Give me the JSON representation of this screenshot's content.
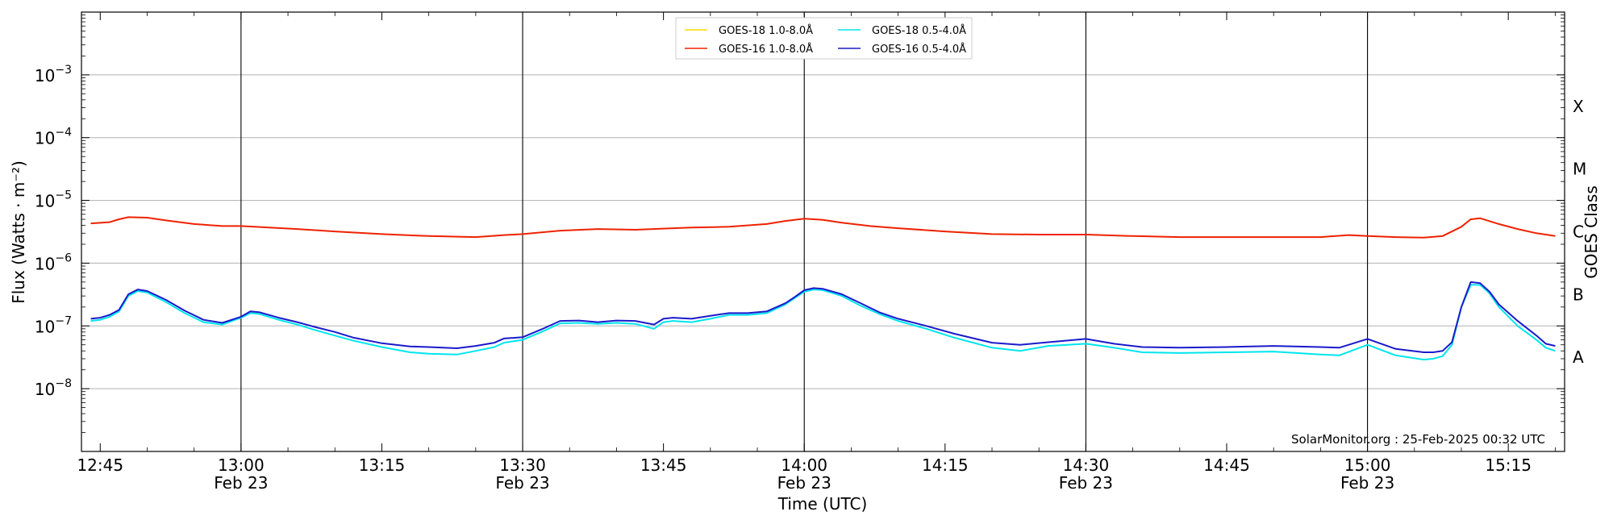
{
  "chart_data": {
    "type": "line",
    "xlabel": "Time (UTC)",
    "ylabel": "Flux (Watts · m⁻²)",
    "y2label": "GOES Class",
    "y_scale": "log",
    "ylim": [
      1e-09,
      0.01
    ],
    "xlim": [
      "2025-02-23 12:43",
      "2025-02-23 15:21"
    ],
    "grid": "horizontal",
    "legend_position": "top-center",
    "credit": "SolarMonitor.org : 25-Feb-2025 00:32 UTC",
    "y_ticks": [
      {
        "value": 1e-08,
        "base": "10",
        "exp": "−8"
      },
      {
        "value": 1e-07,
        "base": "10",
        "exp": "−7"
      },
      {
        "value": 1e-06,
        "base": "10",
        "exp": "−6"
      },
      {
        "value": 1e-05,
        "base": "10",
        "exp": "−5"
      },
      {
        "value": 0.0001,
        "base": "10",
        "exp": "−4"
      },
      {
        "value": 0.001,
        "base": "10",
        "exp": "−3"
      }
    ],
    "x_ticks": [
      {
        "time": "12:45",
        "label": "12:45",
        "sublabel": ""
      },
      {
        "time": "13:00",
        "label": "13:00",
        "sublabel": "Feb 23"
      },
      {
        "time": "13:15",
        "label": "13:15",
        "sublabel": ""
      },
      {
        "time": "13:30",
        "label": "13:30",
        "sublabel": "Feb 23"
      },
      {
        "time": "13:45",
        "label": "13:45",
        "sublabel": ""
      },
      {
        "time": "14:00",
        "label": "14:00",
        "sublabel": "Feb 23"
      },
      {
        "time": "14:15",
        "label": "14:15",
        "sublabel": ""
      },
      {
        "time": "14:30",
        "label": "14:30",
        "sublabel": "Feb 23"
      },
      {
        "time": "14:45",
        "label": "14:45",
        "sublabel": ""
      },
      {
        "time": "15:00",
        "label": "15:00",
        "sublabel": "Feb 23"
      },
      {
        "time": "15:15",
        "label": "15:15",
        "sublabel": ""
      }
    ],
    "vlines": [
      "13:00",
      "13:30",
      "14:00",
      "14:30",
      "15:00"
    ],
    "goes_classes": [
      {
        "label": "A",
        "value": 3.16e-08
      },
      {
        "label": "B",
        "value": 3.16e-07
      },
      {
        "label": "C",
        "value": 3.16e-06
      },
      {
        "label": "M",
        "value": 3.16e-05
      },
      {
        "label": "X",
        "value": 0.000316
      }
    ],
    "series": [
      {
        "name": "GOES-18 1.0-8.0Å",
        "color": "#ffd700",
        "x": [],
        "values": []
      },
      {
        "name": "GOES-16 1.0-8.0Å",
        "color": "#ee2200",
        "x": [
          "12:44",
          "12:46",
          "12:47",
          "12:48",
          "12:50",
          "12:52",
          "12:55",
          "12:58",
          "13:00",
          "13:03",
          "13:06",
          "13:10",
          "13:15",
          "13:20",
          "13:25",
          "13:28",
          "13:30",
          "13:34",
          "13:38",
          "13:42",
          "13:46",
          "13:48",
          "13:52",
          "13:56",
          "13:58",
          "14:00",
          "14:02",
          "14:04",
          "14:07",
          "14:10",
          "14:15",
          "14:20",
          "14:25",
          "14:30",
          "14:35",
          "14:40",
          "14:45",
          "14:50",
          "14:55",
          "14:58",
          "15:00",
          "15:03",
          "15:06",
          "15:08",
          "15:10",
          "15:11",
          "15:12",
          "15:14",
          "15:16",
          "15:18",
          "15:20"
        ],
        "values": [
          4.3e-06,
          4.5e-06,
          5e-06,
          5.4e-06,
          5.3e-06,
          4.8e-06,
          4.2e-06,
          3.9e-06,
          3.9e-06,
          3.7e-06,
          3.5e-06,
          3.2e-06,
          2.9e-06,
          2.7e-06,
          2.6e-06,
          2.8e-06,
          2.9e-06,
          3.3e-06,
          3.5e-06,
          3.4e-06,
          3.6e-06,
          3.7e-06,
          3.8e-06,
          4.2e-06,
          4.7e-06,
          5.1e-06,
          4.9e-06,
          4.4e-06,
          3.9e-06,
          3.6e-06,
          3.2e-06,
          2.9e-06,
          2.85e-06,
          2.85e-06,
          2.7e-06,
          2.6e-06,
          2.6e-06,
          2.6e-06,
          2.6e-06,
          2.8e-06,
          2.7e-06,
          2.6e-06,
          2.55e-06,
          2.7e-06,
          3.8e-06,
          5e-06,
          5.2e-06,
          4.2e-06,
          3.5e-06,
          3e-06,
          2.7e-06
        ]
      },
      {
        "name": "GOES-18 0.5-4.0Å",
        "color": "#00e5ee",
        "x": [
          "12:44",
          "12:45",
          "12:46",
          "12:47",
          "12:48",
          "12:49",
          "12:50",
          "12:52",
          "12:54",
          "12:56",
          "12:58",
          "13:00",
          "13:01",
          "13:02",
          "13:04",
          "13:06",
          "13:08",
          "13:10",
          "13:12",
          "13:15",
          "13:18",
          "13:20",
          "13:23",
          "13:25",
          "13:27",
          "13:28",
          "13:30",
          "13:32",
          "13:34",
          "13:36",
          "13:38",
          "13:40",
          "13:42",
          "13:44",
          "13:45",
          "13:46",
          "13:48",
          "13:50",
          "13:52",
          "13:54",
          "13:56",
          "13:58",
          "13:59",
          "14:00",
          "14:01",
          "14:02",
          "14:04",
          "14:06",
          "14:08",
          "14:10",
          "14:13",
          "14:16",
          "14:20",
          "14:23",
          "14:26",
          "14:30",
          "14:33",
          "14:36",
          "14:40",
          "14:45",
          "14:50",
          "14:55",
          "14:57",
          "15:00",
          "15:03",
          "15:06",
          "15:07",
          "15:08",
          "15:09",
          "15:10",
          "15:11",
          "15:12",
          "15:13",
          "15:14",
          "15:16",
          "15:18",
          "15:19",
          "15:20"
        ],
        "values": [
          1.2e-07,
          1.25e-07,
          1.4e-07,
          1.7e-07,
          3e-07,
          3.6e-07,
          3.4e-07,
          2.4e-07,
          1.6e-07,
          1.15e-07,
          1.05e-07,
          1.35e-07,
          1.6e-07,
          1.55e-07,
          1.25e-07,
          1.05e-07,
          8.5e-08,
          7e-08,
          5.8e-08,
          4.6e-08,
          3.8e-08,
          3.6e-08,
          3.5e-08,
          4e-08,
          4.6e-08,
          5.4e-08,
          6e-08,
          8e-08,
          1.1e-07,
          1.12e-07,
          1.08e-07,
          1.12e-07,
          1.08e-07,
          9e-08,
          1.15e-07,
          1.2e-07,
          1.15e-07,
          1.3e-07,
          1.5e-07,
          1.5e-07,
          1.6e-07,
          2.2e-07,
          2.8e-07,
          3.5e-07,
          3.8e-07,
          3.7e-07,
          3e-07,
          2.1e-07,
          1.55e-07,
          1.2e-07,
          9e-08,
          6.5e-08,
          4.5e-08,
          4e-08,
          4.8e-08,
          5.2e-08,
          4.5e-08,
          3.8e-08,
          3.7e-08,
          3.8e-08,
          3.9e-08,
          3.5e-08,
          3.4e-08,
          5e-08,
          3.4e-08,
          2.9e-08,
          3e-08,
          3.3e-08,
          5e-08,
          2e-07,
          4.5e-07,
          4.5e-07,
          3.3e-07,
          2e-07,
          1e-07,
          6e-08,
          4.5e-08,
          4e-08
        ]
      },
      {
        "name": "GOES-16 0.5-4.0Å",
        "color": "#1a1acc",
        "x": [
          "12:44",
          "12:45",
          "12:46",
          "12:47",
          "12:48",
          "12:49",
          "12:50",
          "12:52",
          "12:54",
          "12:56",
          "12:58",
          "13:00",
          "13:01",
          "13:02",
          "13:04",
          "13:06",
          "13:08",
          "13:10",
          "13:12",
          "13:15",
          "13:18",
          "13:20",
          "13:23",
          "13:25",
          "13:27",
          "13:28",
          "13:30",
          "13:32",
          "13:34",
          "13:36",
          "13:38",
          "13:40",
          "13:42",
          "13:44",
          "13:45",
          "13:46",
          "13:48",
          "13:50",
          "13:52",
          "13:54",
          "13:56",
          "13:58",
          "13:59",
          "14:00",
          "14:01",
          "14:02",
          "14:04",
          "14:06",
          "14:08",
          "14:10",
          "14:13",
          "14:16",
          "14:20",
          "14:23",
          "14:26",
          "14:30",
          "14:33",
          "14:36",
          "14:40",
          "14:45",
          "14:50",
          "14:55",
          "14:57",
          "15:00",
          "15:03",
          "15:06",
          "15:07",
          "15:08",
          "15:09",
          "15:10",
          "15:11",
          "15:12",
          "15:13",
          "15:14",
          "15:16",
          "15:18",
          "15:19",
          "15:20"
        ],
        "values": [
          1.3e-07,
          1.35e-07,
          1.5e-07,
          1.8e-07,
          3.2e-07,
          3.8e-07,
          3.6e-07,
          2.6e-07,
          1.75e-07,
          1.25e-07,
          1.12e-07,
          1.4e-07,
          1.7e-07,
          1.65e-07,
          1.35e-07,
          1.15e-07,
          9.5e-08,
          8e-08,
          6.5e-08,
          5.3e-08,
          4.7e-08,
          4.6e-08,
          4.4e-08,
          4.8e-08,
          5.4e-08,
          6.3e-08,
          6.6e-08,
          8.8e-08,
          1.2e-07,
          1.22e-07,
          1.15e-07,
          1.22e-07,
          1.2e-07,
          1.05e-07,
          1.3e-07,
          1.35e-07,
          1.3e-07,
          1.45e-07,
          1.6e-07,
          1.6e-07,
          1.7e-07,
          2.3e-07,
          2.9e-07,
          3.7e-07,
          4e-07,
          3.9e-07,
          3.2e-07,
          2.3e-07,
          1.65e-07,
          1.3e-07,
          1e-07,
          7.5e-08,
          5.4e-08,
          5e-08,
          5.5e-08,
          6.2e-08,
          5.2e-08,
          4.6e-08,
          4.5e-08,
          4.6e-08,
          4.8e-08,
          4.6e-08,
          4.5e-08,
          6.2e-08,
          4.3e-08,
          3.8e-08,
          3.8e-08,
          4e-08,
          5.5e-08,
          2e-07,
          5e-07,
          4.8e-07,
          3.5e-07,
          2.2e-07,
          1.2e-07,
          7e-08,
          5.2e-08,
          4.8e-08
        ]
      }
    ]
  }
}
